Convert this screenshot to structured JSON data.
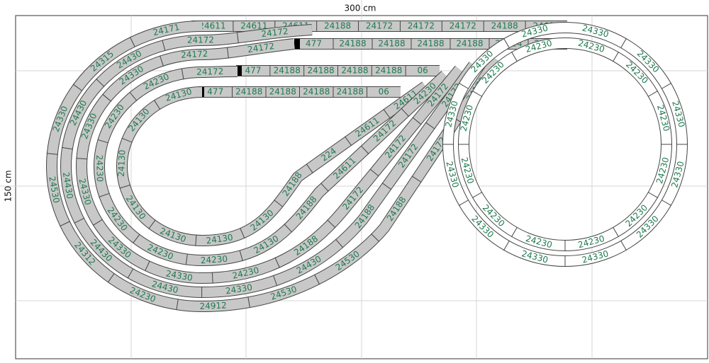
{
  "header": {
    "width_label": "300 cm",
    "height_label": "150 cm"
  },
  "tracks": [
    {
      "pieces": [
        "24611",
        "24611",
        "24611",
        "24188",
        "24172",
        "24172",
        "24172",
        "24188",
        "24611"
      ]
    },
    {
      "pieces": [
        "477",
        "24188",
        "24188",
        "24188",
        "24188",
        "24624",
        "24172"
      ]
    },
    {
      "pieces": [
        "477",
        "24188",
        "24188",
        "24188",
        "24188",
        "06"
      ]
    },
    {
      "pieces": [
        "477",
        "24188",
        "24188",
        "24188",
        "24188",
        "06"
      ]
    },
    {
      "pieces": [
        "24130",
        "24130",
        "24130",
        "24130",
        "24130",
        "24130",
        "24130",
        "24188",
        "224",
        "24611",
        "24611"
      ]
    },
    {
      "pieces": [
        "24172",
        "24230",
        "24230",
        "24230",
        "24230",
        "24230",
        "24230",
        "24130",
        "24188",
        "24611",
        "24172",
        "24230"
      ]
    },
    {
      "pieces": [
        "24172",
        "24172",
        "24330",
        "24330",
        "24330",
        "24330",
        "24330",
        "24230",
        "24188",
        "24172",
        "24172",
        "24172"
      ]
    },
    {
      "pieces": [
        "24172",
        "24172",
        "24430",
        "24430",
        "24430",
        "24430",
        "24430",
        "24330",
        "24430",
        "24188",
        "24172",
        "24172"
      ]
    },
    {
      "pieces": [
        "24171",
        "24315",
        "24330",
        "24530",
        "24312",
        "24230",
        "24912",
        "24530",
        "24530",
        "24188",
        "24172",
        "24172"
      ]
    },
    {
      "pieces": [
        "24330",
        "24330",
        "24330",
        "24330",
        "24330",
        "24330",
        "24330",
        "24330",
        "24330",
        "24330",
        "24330",
        "24330"
      ]
    },
    {
      "pieces": [
        "24230",
        "24230",
        "24230",
        "24230",
        "24230",
        "24230",
        "24230",
        "24230",
        "24230",
        "24230",
        "24230",
        "24230"
      ]
    }
  ]
}
